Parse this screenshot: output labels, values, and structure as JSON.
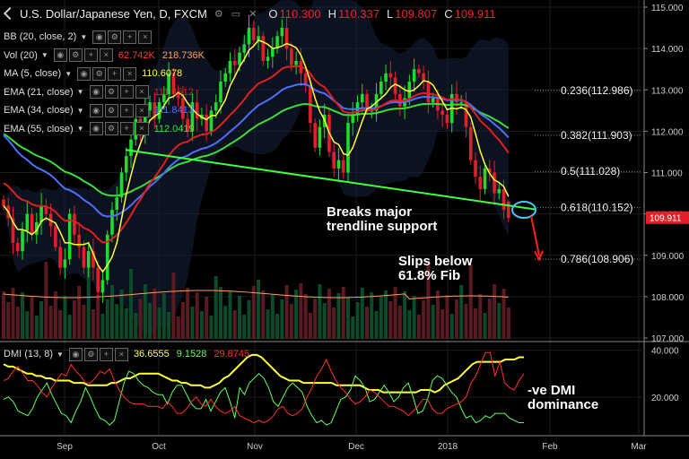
{
  "header": {
    "title": "U.S. Dollar/Japanese Yen, D, FXCM",
    "icons": "⚙ ▭ ✕",
    "o_label": "O",
    "o_value": "110.300",
    "h_label": "H",
    "h_value": "110.337",
    "l_label": "L",
    "l_value": "109.807",
    "c_label": "C",
    "c_value": "109.911"
  },
  "indicators": [
    {
      "name": "BB (20, close, 2)",
      "values": [],
      "colors": []
    },
    {
      "name": "Vol (20)",
      "values": [
        "62.742K",
        "218.736K"
      ],
      "colors": [
        "#ff3b3b",
        "#ffa060"
      ]
    },
    {
      "name": "MA (5, close)",
      "values": [
        "110.6078"
      ],
      "colors": [
        "#ffff40"
      ]
    },
    {
      "name": "EMA (21, close)",
      "values": [
        "111.4512"
      ],
      "colors": [
        "#e02020"
      ]
    },
    {
      "name": "EMA (34, close)",
      "values": [
        "111.8413"
      ],
      "colors": [
        "#5070ff"
      ]
    },
    {
      "name": "EMA (55, close)",
      "values": [
        "112.0419"
      ],
      "colors": [
        "#40e040"
      ]
    }
  ],
  "dmi": {
    "name": "DMI (13, 8)",
    "values": [
      "36.6555",
      "9.1528",
      "29.8745"
    ],
    "colors": [
      "#ffff40",
      "#60ff60",
      "#ff3030"
    ]
  },
  "annotations": {
    "trendline": "Breaks major\ntrendline support",
    "fib": "Slips below\n61.8% Fib",
    "dmi": "-ve DMI\ndominance"
  },
  "chart_data": [
    {
      "type": "candlestick",
      "title": "U.S. Dollar/Japanese Yen, D, FXCM",
      "y_ticks": [
        107.0,
        108.0,
        109.0,
        110.0,
        111.0,
        112.0,
        113.0,
        114.0,
        115.0
      ],
      "ylim": [
        107.0,
        115.0
      ],
      "x_ticks": [
        "Sep",
        "Oct",
        "Nov",
        "Dec",
        "2018",
        "Feb",
        "Mar"
      ],
      "last_price": "109.911",
      "fib_levels": [
        {
          "label": "0.236(112.986)",
          "value": 112.986
        },
        {
          "label": "0.382(111.903)",
          "value": 111.903
        },
        {
          "label": "0.5(111.028)",
          "value": 111.028
        },
        {
          "label": "0.618(110.152)",
          "value": 110.152
        },
        {
          "label": "0.786(108.906)",
          "value": 108.906
        }
      ],
      "trendline": [
        {
          "x": "Sep 19",
          "y": 111.55
        },
        {
          "x": "Jan 22",
          "y": 110.15
        }
      ],
      "series_closes": [
        110.2,
        109.9,
        109.3,
        109.1,
        109.6,
        110.0,
        109.5,
        109.8,
        110.2,
        110.0,
        109.7,
        109.2,
        108.7,
        108.9,
        110.0,
        109.5,
        109.2,
        108.7,
        109.1,
        108.7,
        108.1,
        108.4,
        109.5,
        110.1,
        110.4,
        111.0,
        111.4,
        111.8,
        112.3,
        112.0,
        112.5,
        112.7,
        112.3,
        112.7,
        112.9,
        113.4,
        112.9,
        112.8,
        112.3,
        112.0,
        112.7,
        112.3,
        112.4,
        112.0,
        112.5,
        112.7,
        113.2,
        113.4,
        113.7,
        113.6,
        113.9,
        114.1,
        114.5,
        114.2,
        114.3,
        113.7,
        113.8,
        114.0,
        114.3,
        114.5,
        114.0,
        113.6,
        113.7,
        113.4,
        113.1,
        112.2,
        111.6,
        112.1,
        112.4,
        111.5,
        111.1,
        111.3,
        111.0,
        112.2,
        112.4,
        112.7,
        112.9,
        112.5,
        112.5,
        112.9,
        113.2,
        113.4,
        113.3,
        112.9,
        112.6,
        112.8,
        113.2,
        113.5,
        113.4,
        113.2,
        112.7,
        112.8,
        112.5,
        112.4,
        112.2,
        112.9,
        112.7,
        112.7,
        112.1,
        111.3,
        110.9,
        110.6,
        111.1,
        111.0,
        110.5,
        110.6,
        110.1,
        109.9
      ]
    },
    {
      "type": "line",
      "title": "DMI (13, 8)",
      "y_ticks": [
        20.0,
        40.0
      ],
      "ylim": [
        5,
        41
      ],
      "series": [
        {
          "name": "ADX",
          "color": "#ffff40",
          "values": [
            34,
            33,
            33,
            32,
            31,
            30,
            30,
            29,
            29,
            28,
            28,
            27,
            27,
            27,
            27,
            26,
            26,
            26,
            25,
            25,
            25,
            25,
            25,
            26,
            26,
            27,
            28,
            28,
            29,
            30,
            30,
            30,
            30,
            30,
            29,
            28,
            27,
            27,
            26,
            26,
            25,
            25,
            25,
            24,
            24,
            25,
            26,
            28,
            29,
            31,
            33,
            35,
            37,
            38,
            38,
            37,
            35,
            33,
            31,
            29,
            28,
            27,
            27,
            27,
            26,
            26,
            26,
            26,
            26,
            26,
            26,
            25,
            25,
            25,
            25,
            25,
            25,
            24,
            23,
            23,
            23,
            22,
            22,
            22,
            22,
            22,
            22,
            22,
            22,
            23,
            23,
            23,
            22,
            23,
            25,
            26,
            27,
            28,
            30,
            32,
            34,
            35,
            35,
            35,
            35,
            35,
            35,
            36,
            36,
            36,
            37,
            37
          ]
        },
        {
          "name": "+DI",
          "color": "#60ff60",
          "values": [
            19,
            20,
            18,
            14,
            13,
            12,
            15,
            20,
            23,
            26,
            21,
            17,
            13,
            12,
            9,
            14,
            18,
            24,
            20,
            15,
            11,
            10,
            8,
            10,
            18,
            26,
            31,
            30,
            27,
            25,
            24,
            22,
            21,
            21,
            17,
            22,
            25,
            25,
            21,
            17,
            15,
            15,
            19,
            14,
            18,
            22,
            24,
            18,
            11,
            24,
            21,
            26,
            28,
            30,
            28,
            24,
            18,
            16,
            20,
            24,
            26,
            24,
            22,
            16,
            12,
            9,
            10,
            8,
            9,
            14,
            19,
            20,
            23,
            29,
            27,
            24,
            18,
            19,
            22,
            25,
            22,
            18,
            20,
            24,
            26,
            20,
            13,
            14,
            19,
            27,
            29,
            28,
            25,
            22,
            20,
            15,
            11,
            12,
            9,
            10,
            12,
            11,
            13,
            13,
            13,
            11,
            10,
            9,
            9
          ]
        },
        {
          "name": "-DI",
          "color": "#ff3030",
          "values": [
            27,
            28,
            31,
            33,
            30,
            27,
            27,
            25,
            22,
            20,
            24,
            27,
            30,
            29,
            34,
            31,
            29,
            26,
            26,
            28,
            31,
            30,
            32,
            27,
            23,
            20,
            18,
            17,
            17,
            17,
            16,
            16,
            16,
            15,
            18,
            16,
            13,
            13,
            15,
            18,
            20,
            17,
            16,
            19,
            16,
            14,
            13,
            14,
            16,
            12,
            11,
            10,
            9,
            10,
            9,
            10,
            12,
            15,
            16,
            13,
            12,
            13,
            15,
            20,
            24,
            29,
            32,
            36,
            31,
            27,
            24,
            22,
            19,
            17,
            18,
            20,
            23,
            22,
            20,
            18,
            16,
            16,
            15,
            14,
            12,
            14,
            16,
            19,
            19,
            15,
            13,
            13,
            15,
            16,
            17,
            18,
            20,
            26,
            29,
            34,
            39,
            39,
            29,
            35,
            26,
            24,
            23,
            27,
            30
          ]
        }
      ]
    }
  ]
}
